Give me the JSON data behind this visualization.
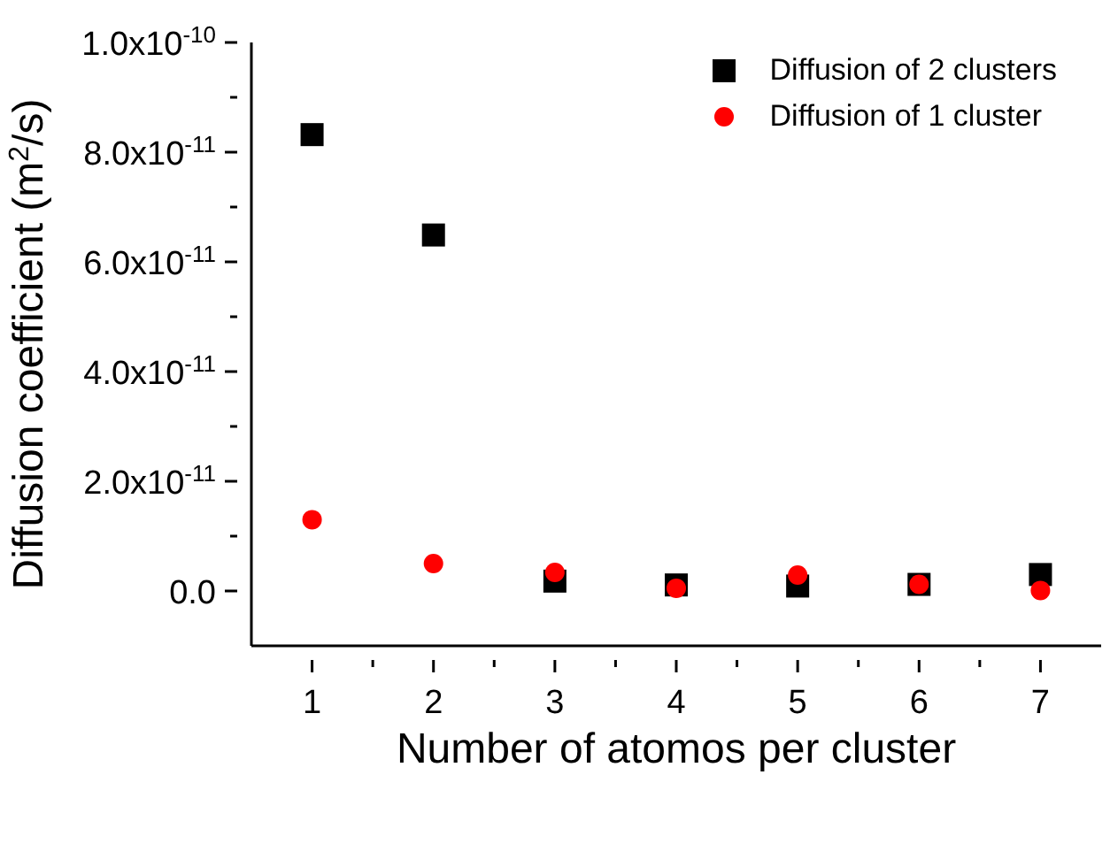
{
  "chart_data": {
    "type": "scatter",
    "xlabel": "Number of atomos per cluster",
    "ylabel": "Diffusion coefficient (m$^{2}$/s)",
    "x": [
      1,
      2,
      3,
      4,
      5,
      6,
      7
    ],
    "series": [
      {
        "name": "Diffusion of 2 clusters",
        "color": "#000000",
        "marker": "square",
        "values": [
          8.32e-11,
          6.49e-11,
          1.8e-12,
          1.1e-12,
          9e-13,
          1.2e-12,
          3e-12
        ]
      },
      {
        "name": "Diffusion of 1 cluster",
        "color": "#ff0000",
        "marker": "circle",
        "values": [
          1.3e-11,
          5e-12,
          3.4e-12,
          5e-13,
          2.9e-12,
          1.2e-12,
          1e-13
        ]
      }
    ],
    "xlim": [
      0.5,
      7.5
    ],
    "xticks": [
      1,
      {
        "value": 1.5,
        "label": null
      },
      2,
      {
        "value": 2.5,
        "label": null
      },
      3,
      {
        "value": 3.5,
        "label": null
      },
      4,
      {
        "value": 4.5,
        "label": null
      },
      5,
      {
        "value": 5.5,
        "label": null
      },
      6,
      {
        "value": 6.5,
        "label": null
      },
      7
    ],
    "ylim": [
      -1e-11,
      1e-10
    ],
    "yticks": [
      {
        "value": 0,
        "label": "0.0"
      },
      {
        "value": 1e-11,
        "label": null
      },
      {
        "value": 2e-11,
        "label": "2.0x10$^{-11}$"
      },
      {
        "value": 3e-11,
        "label": null
      },
      {
        "value": 4e-11,
        "label": "4.0x10$^{-11}$"
      },
      {
        "value": 5e-11,
        "label": null
      },
      {
        "value": 6e-11,
        "label": "6.0x10$^{-11}$"
      },
      {
        "value": 7e-11,
        "label": null
      },
      {
        "value": 8e-11,
        "label": "8.0x10$^{-11}$"
      },
      {
        "value": 9e-11,
        "label": null
      },
      {
        "value": 1e-10,
        "label": "1.0x10$^{-10}$"
      }
    ],
    "grid": false,
    "legend": "top right"
  }
}
